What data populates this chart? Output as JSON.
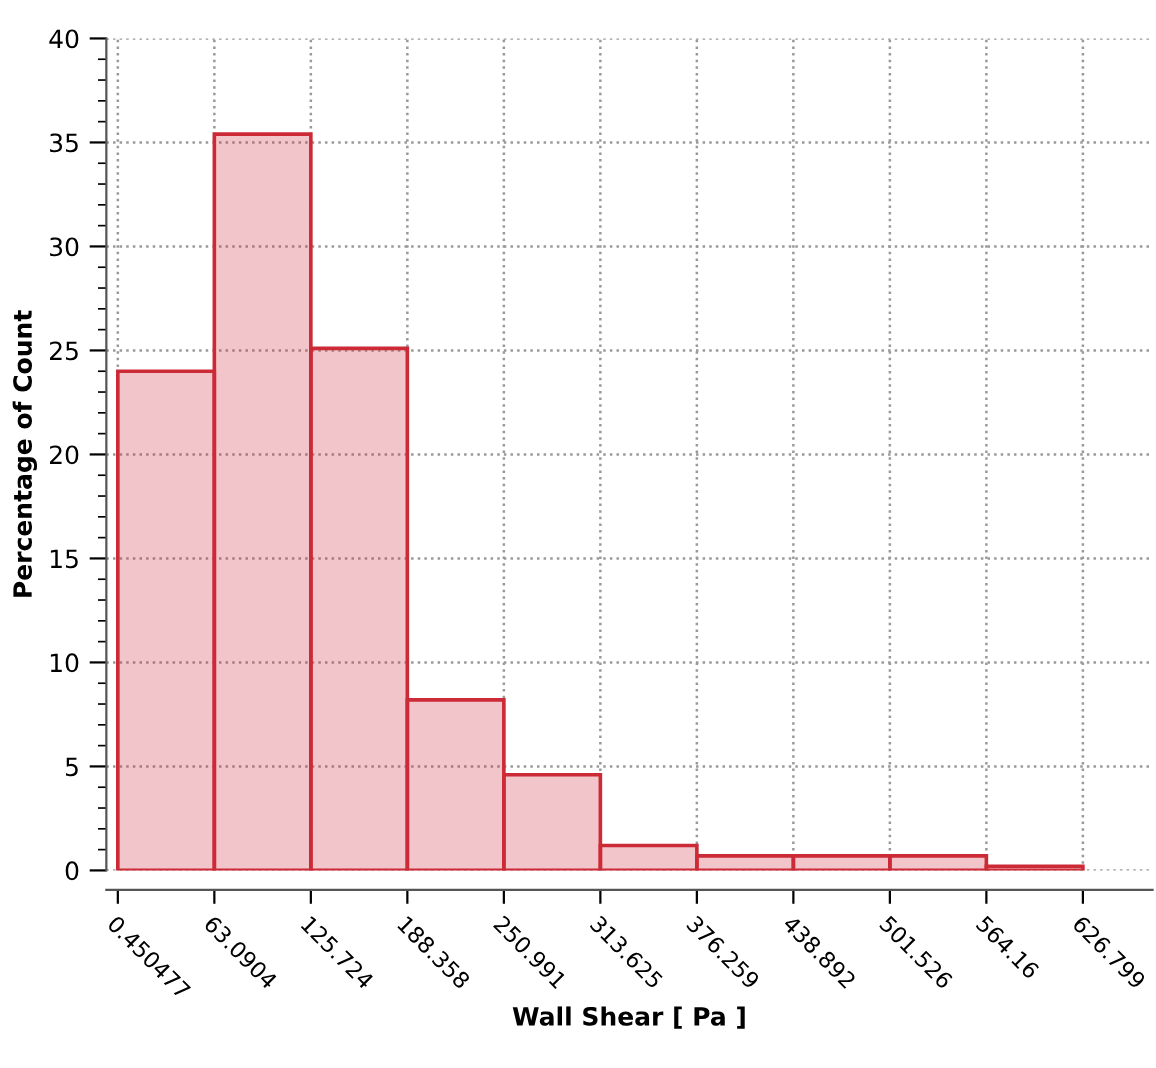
{
  "chart_data": {
    "type": "histogram",
    "xlabel": "Wall Shear [ Pa ]",
    "ylabel": "Percentage of Count",
    "bins": [
      0.450477,
      63.0904,
      125.724,
      188.358,
      250.991,
      313.625,
      376.259,
      438.892,
      501.526,
      564.16,
      626.799
    ],
    "values": [
      24.0,
      35.4,
      25.1,
      8.2,
      4.6,
      1.2,
      0.7,
      0.7,
      0.7,
      0.2
    ],
    "color": "#cc2a36",
    "xlim": [
      -7,
      672
    ],
    "xticks": [
      0.450477,
      63.0904,
      125.724,
      188.358,
      250.991,
      313.625,
      376.259,
      438.892,
      501.526,
      564.16,
      626.799
    ],
    "ylim": [
      0,
      40
    ],
    "yticks": [
      0,
      5,
      10,
      15,
      20,
      25,
      30,
      35,
      40
    ],
    "grid": true
  }
}
